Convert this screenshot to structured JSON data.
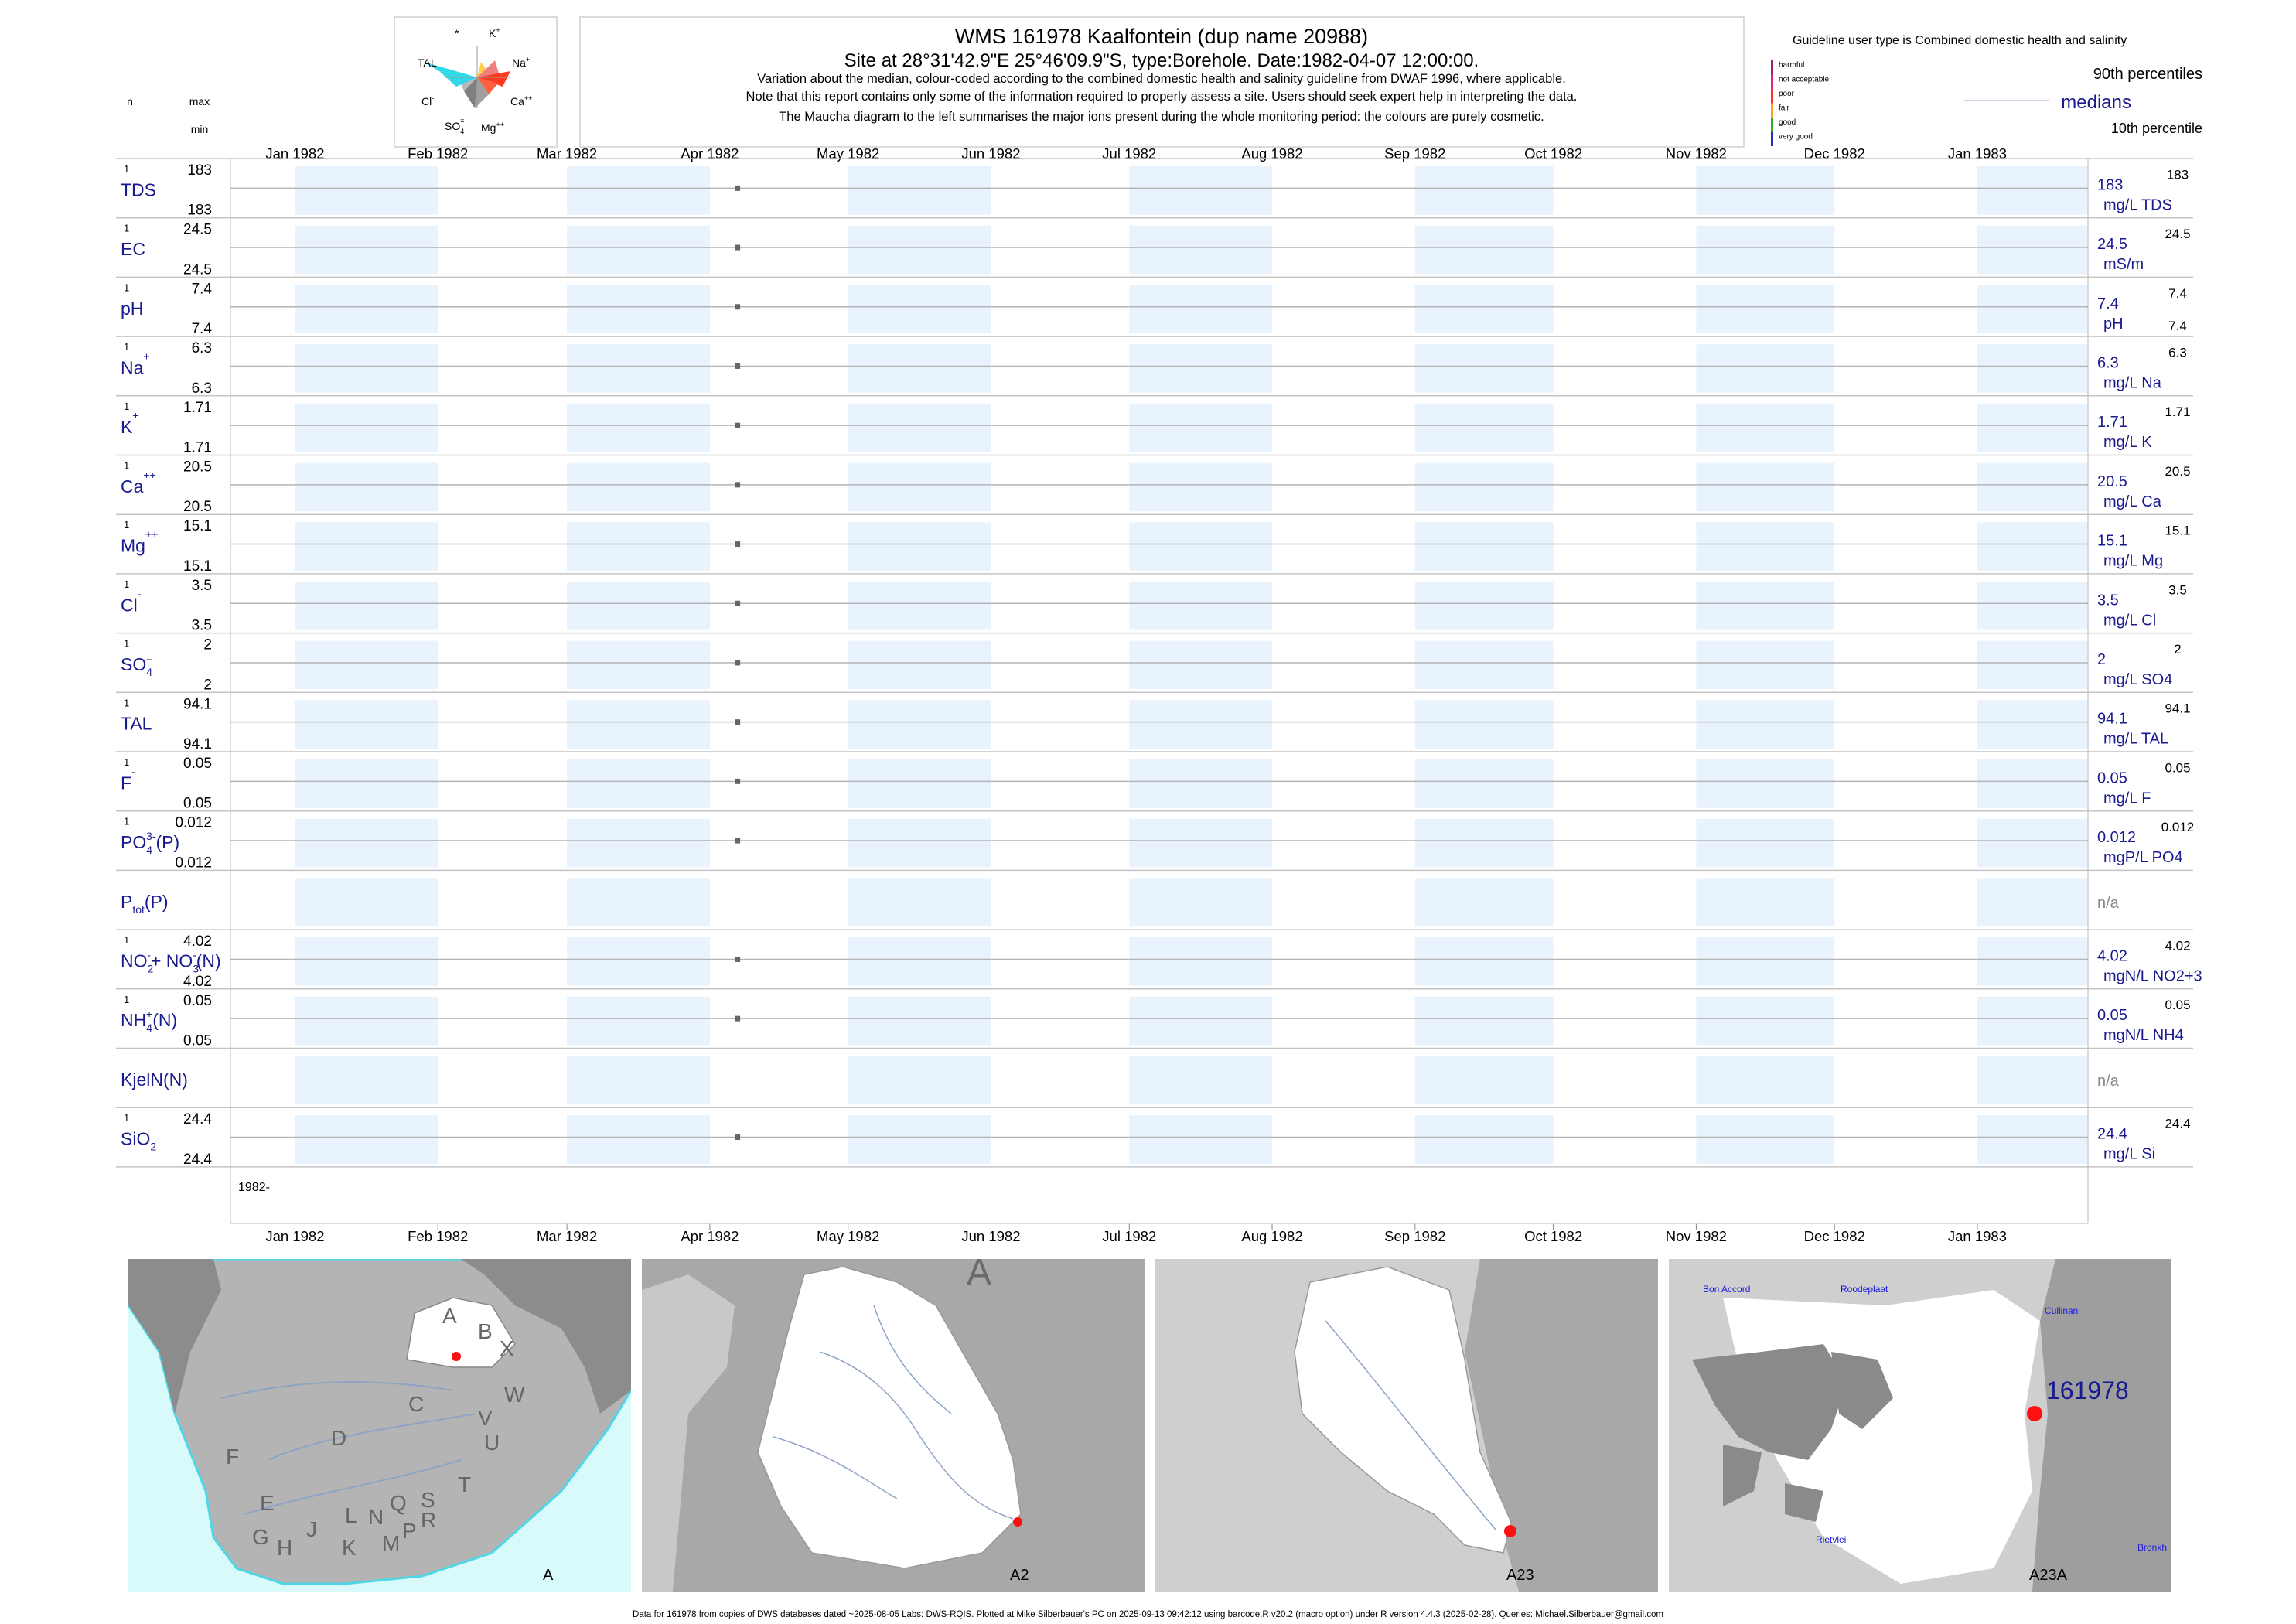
{
  "header": {
    "title": "WMS 161978  Kaalfontein (dup name 20988)",
    "subtitle": "Site at 28°31'42.9\"E 25°46'09.9\"S, type:Borehole. Date:1982-04-07 12:00:00.",
    "notes": [
      "Variation about the median,  colour-coded according to the combined domestic health and salinity guideline from DWAF 1996, where applicable.",
      "Note that this report contains only some of the information required to properly assess a site. Users should seek expert help in interpreting the data.",
      "The Maucha diagram to the left summarises the major ions present during the whole monitoring period: the colours are purely cosmetic."
    ]
  },
  "left_header": {
    "n": "n",
    "max": "max",
    "min": "min"
  },
  "maucha": {
    "labels": [
      "*",
      "K+",
      "Na+",
      "Ca++",
      "Mg++",
      "SO4=",
      "Cl-",
      "TAL"
    ],
    "colors": [
      "#ffd24d",
      "#f08080",
      "#ff3b1f",
      "#ff3b1f",
      "#a0a0a0",
      "#808080",
      "#b0b0b0",
      "#30d8e8"
    ]
  },
  "legend": {
    "guideline_text": "Guideline user type is Combined domestic health and salinity",
    "classes": [
      "harmful",
      "not acceptable",
      "poor",
      "fair",
      "good",
      "very good"
    ],
    "class_colors": [
      "#a0206e",
      "#e0208e",
      "#ff3030",
      "#ffa020",
      "#30b030",
      "#2030c0"
    ],
    "p90": "90th percentiles",
    "medians": "medians",
    "p10": "10th percentile"
  },
  "chart_data": {
    "type": "scatter",
    "x_axis": {
      "range": [
        "1981-12-18",
        "1983-01-25"
      ],
      "ticks": [
        "Jan 1982",
        "Feb 1982",
        "Mar 1982",
        "Apr 1982",
        "May 1982",
        "Jun 1982",
        "Jul 1982",
        "Aug 1982",
        "Sep 1982",
        "Oct 1982",
        "Nov 1982",
        "Dec 1982",
        "Jan 1983"
      ],
      "shaded_months": [
        "Jan 1982",
        "Mar 1982",
        "May 1982",
        "Jul 1982",
        "Sep 1982",
        "Nov 1982",
        "Jan 1983"
      ]
    },
    "year_label": "1982-",
    "sample_date": "1982-04-07",
    "series": [
      {
        "label": "TDS",
        "sup": "",
        "sub": "",
        "n": "1",
        "max": "183",
        "min": "183",
        "value": "183",
        "unit": "mg/L TDS",
        "right": "183",
        "right_low": ""
      },
      {
        "label": "EC",
        "sup": "",
        "sub": "",
        "n": "1",
        "max": "24.5",
        "min": "24.5",
        "value": "24.5",
        "unit": "mS/m",
        "right": "24.5",
        "right_low": ""
      },
      {
        "label": "pH",
        "sup": "",
        "sub": "",
        "n": "1",
        "max": "7.4",
        "min": "7.4",
        "value": "7.4",
        "unit": "pH",
        "right": "7.4",
        "right_low": "7.4"
      },
      {
        "label": "Na",
        "sup": "+",
        "sub": "",
        "n": "1",
        "max": "6.3",
        "min": "6.3",
        "value": "6.3",
        "unit": "mg/L Na",
        "right": "6.3",
        "right_low": ""
      },
      {
        "label": "K",
        "sup": "+",
        "sub": "",
        "n": "1",
        "max": "1.71",
        "min": "1.71",
        "value": "1.71",
        "unit": "mg/L K",
        "right": "1.71",
        "right_low": ""
      },
      {
        "label": "Ca",
        "sup": "++",
        "sub": "",
        "n": "1",
        "max": "20.5",
        "min": "20.5",
        "value": "20.5",
        "unit": "mg/L Ca",
        "right": "20.5",
        "right_low": ""
      },
      {
        "label": "Mg",
        "sup": "++",
        "sub": "",
        "n": "1",
        "max": "15.1",
        "min": "15.1",
        "value": "15.1",
        "unit": "mg/L Mg",
        "right": "15.1",
        "right_low": ""
      },
      {
        "label": "Cl",
        "sup": "-",
        "sub": "",
        "n": "1",
        "max": "3.5",
        "min": "3.5",
        "value": "3.5",
        "unit": "mg/L Cl",
        "right": "3.5",
        "right_low": ""
      },
      {
        "label": "SO",
        "sup": "=",
        "sub": "4",
        "n": "1",
        "max": "2",
        "min": "2",
        "value": "2",
        "unit": "mg/L SO4",
        "right": "2",
        "right_low": ""
      },
      {
        "label": "TAL",
        "sup": "",
        "sub": "",
        "n": "1",
        "max": "94.1",
        "min": "94.1",
        "value": "94.1",
        "unit": "mg/L TAL",
        "right": "94.1",
        "right_low": ""
      },
      {
        "label": "F",
        "sup": "-",
        "sub": "",
        "n": "1",
        "max": "0.05",
        "min": "0.05",
        "value": "0.05",
        "unit": "mg/L F",
        "right": "0.05",
        "right_low": ""
      },
      {
        "label": "PO",
        "sup": "3-",
        "sub": "4",
        "tail": "(P)",
        "n": "1",
        "max": "0.012",
        "min": "0.012",
        "value": "0.012",
        "unit": "mgP/L PO4",
        "right": "0.012",
        "right_low": ""
      },
      {
        "label": "P",
        "sup": "",
        "sub": "tot",
        "tail": "(P)",
        "n": "",
        "max": "",
        "min": "",
        "value": "n/a",
        "unit": "",
        "right": "",
        "right_low": ""
      },
      {
        "label": "NO",
        "sup": "-",
        "sub": "2",
        "tail": "+ NO",
        "sup2": "-",
        "sub2": "3",
        "tail2": "(N)",
        "n": "1",
        "max": "4.02",
        "min": "4.02",
        "value": "4.02",
        "unit": "mgN/L NO2+3",
        "right": "4.02",
        "right_low": ""
      },
      {
        "label": "NH",
        "sup": "+",
        "sub": "4",
        "tail": "(N)",
        "n": "1",
        "max": "0.05",
        "min": "0.05",
        "value": "0.05",
        "unit": "mgN/L NH4",
        "right": "0.05",
        "right_low": ""
      },
      {
        "label": "KjelN(N)",
        "sup": "",
        "sub": "",
        "n": "",
        "max": "",
        "min": "",
        "value": "n/a",
        "unit": "",
        "right": "",
        "right_low": ""
      },
      {
        "label": "SiO",
        "sup": "",
        "sub": "2",
        "n": "1",
        "max": "24.4",
        "min": "24.4",
        "value": "24.4",
        "unit": "mg/L Si",
        "right": "24.4",
        "right_low": ""
      }
    ]
  },
  "maps": [
    {
      "label": "A",
      "regions": [
        "A",
        "B",
        "X",
        "C",
        "W",
        "D",
        "V",
        "U",
        "T",
        "F",
        "E",
        "G",
        "H",
        "J",
        "K",
        "L",
        "M",
        "N",
        "P",
        "Q",
        "R",
        "S"
      ]
    },
    {
      "label": "A2",
      "region_letter": "A"
    },
    {
      "label": "A23"
    },
    {
      "label": "A23A",
      "site_label": "161978",
      "places": [
        "Bon Accord",
        "Roodeplaat",
        "Cullinan",
        "Rietvlei",
        "Bronkh"
      ]
    }
  ],
  "footer": "Data for 161978 from copies of DWS databases dated ~2025-08-05 Labs: DWS-RQIS. Plotted at Mike Silberbauer's PC on 2025-09-13 09:42:12 using barcode.R v20.2 (macro option) under R version 4.4.3 (2025-02-28). Queries: Michael.Silberbauer@gmail.com"
}
